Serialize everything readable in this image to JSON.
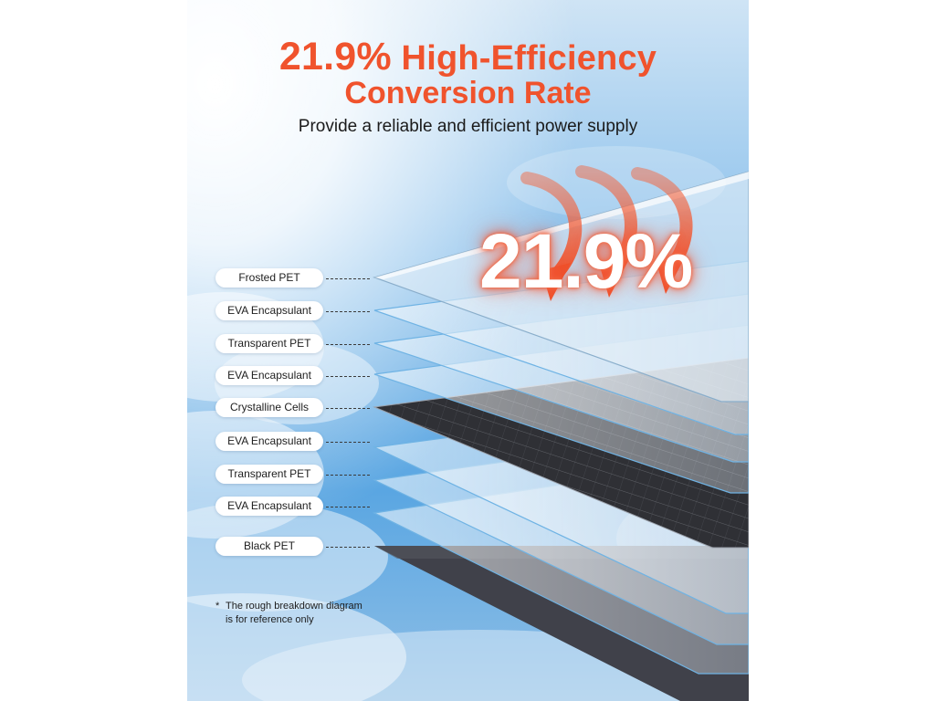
{
  "header": {
    "title_pct": "21.9%",
    "title_rest": "High-Efficiency",
    "title_line2": "Conversion Rate",
    "subtitle": "Provide a reliable and efficient power supply"
  },
  "big_percentage": "21.9%",
  "layers": [
    {
      "label": "Frosted PET"
    },
    {
      "label": "EVA Encapsulant"
    },
    {
      "label": "Transparent PET"
    },
    {
      "label": "EVA Encapsulant"
    },
    {
      "label": "Crystalline Cells"
    },
    {
      "label": "EVA Encapsulant"
    },
    {
      "label": "Transparent PET"
    },
    {
      "label": "EVA Encapsulant"
    },
    {
      "label": "Black PET"
    }
  ],
  "note": {
    "marker": "*",
    "line1": "The rough breakdown diagram",
    "line2": "is for reference only"
  },
  "colors": {
    "accent": "#f0532d",
    "arrow": "#f26a45",
    "cells": "#2e2e32",
    "black_pet": "#3a3a40",
    "sky": "#5ea8e0"
  },
  "icons": [
    "sun-glow",
    "curved-arrow-down",
    "curved-arrow-down",
    "curved-arrow-down"
  ]
}
